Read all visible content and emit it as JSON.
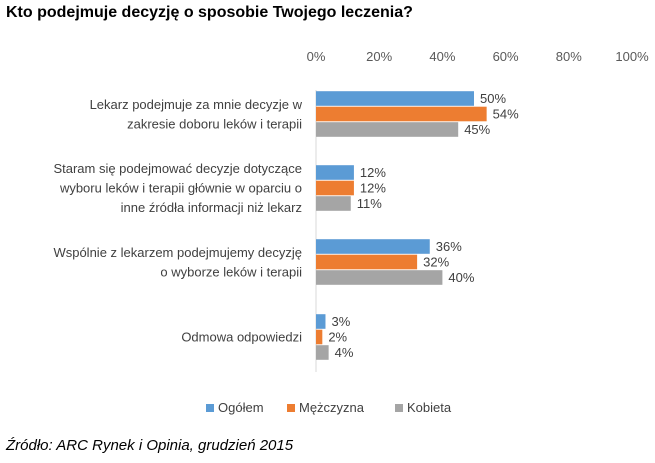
{
  "title": "Kto podejmuje decyzję o sposobie Twojego leczenia?",
  "source": "Źródło: ARC Rynek i Opinia, grudzień 2015",
  "chart_data": {
    "type": "bar",
    "orientation": "horizontal",
    "title": "Kto podejmuje decyzję o sposobie Twojego leczenia?",
    "xlim": [
      0,
      100
    ],
    "ticks": [
      "0%",
      "20%",
      "40%",
      "60%",
      "80%",
      "100%"
    ],
    "tick_values": [
      0,
      20,
      40,
      60,
      80,
      100
    ],
    "categories": [
      [
        "Lekarz podejmuje za mnie decyzje w",
        "zakresie doboru leków i terapii"
      ],
      [
        "Staram się podejmować decyzje dotyczące",
        "wyboru leków i terapii głównie w oparciu o",
        "inne źródła informacji niż lekarz"
      ],
      [
        "Wspólnie z lekarzem podejmujemy decyzję",
        "o wyborze leków i terapii"
      ],
      [
        "Odmowa odpowiedzi"
      ]
    ],
    "series": [
      {
        "name": "Ogółem",
        "color": "#5b9bd5",
        "values": [
          50,
          12,
          36,
          3
        ],
        "labels": [
          "50%",
          "12%",
          "36%",
          "3%"
        ]
      },
      {
        "name": "Mężczyzna",
        "color": "#ed7d31",
        "values": [
          54,
          12,
          32,
          2
        ],
        "labels": [
          "54%",
          "12%",
          "32%",
          "2%"
        ]
      },
      {
        "name": "Kobieta",
        "color": "#a5a5a5",
        "values": [
          45,
          11,
          40,
          4
        ],
        "labels": [
          "45%",
          "11%",
          "40%",
          "4%"
        ]
      }
    ],
    "legend_position": "bottom"
  }
}
